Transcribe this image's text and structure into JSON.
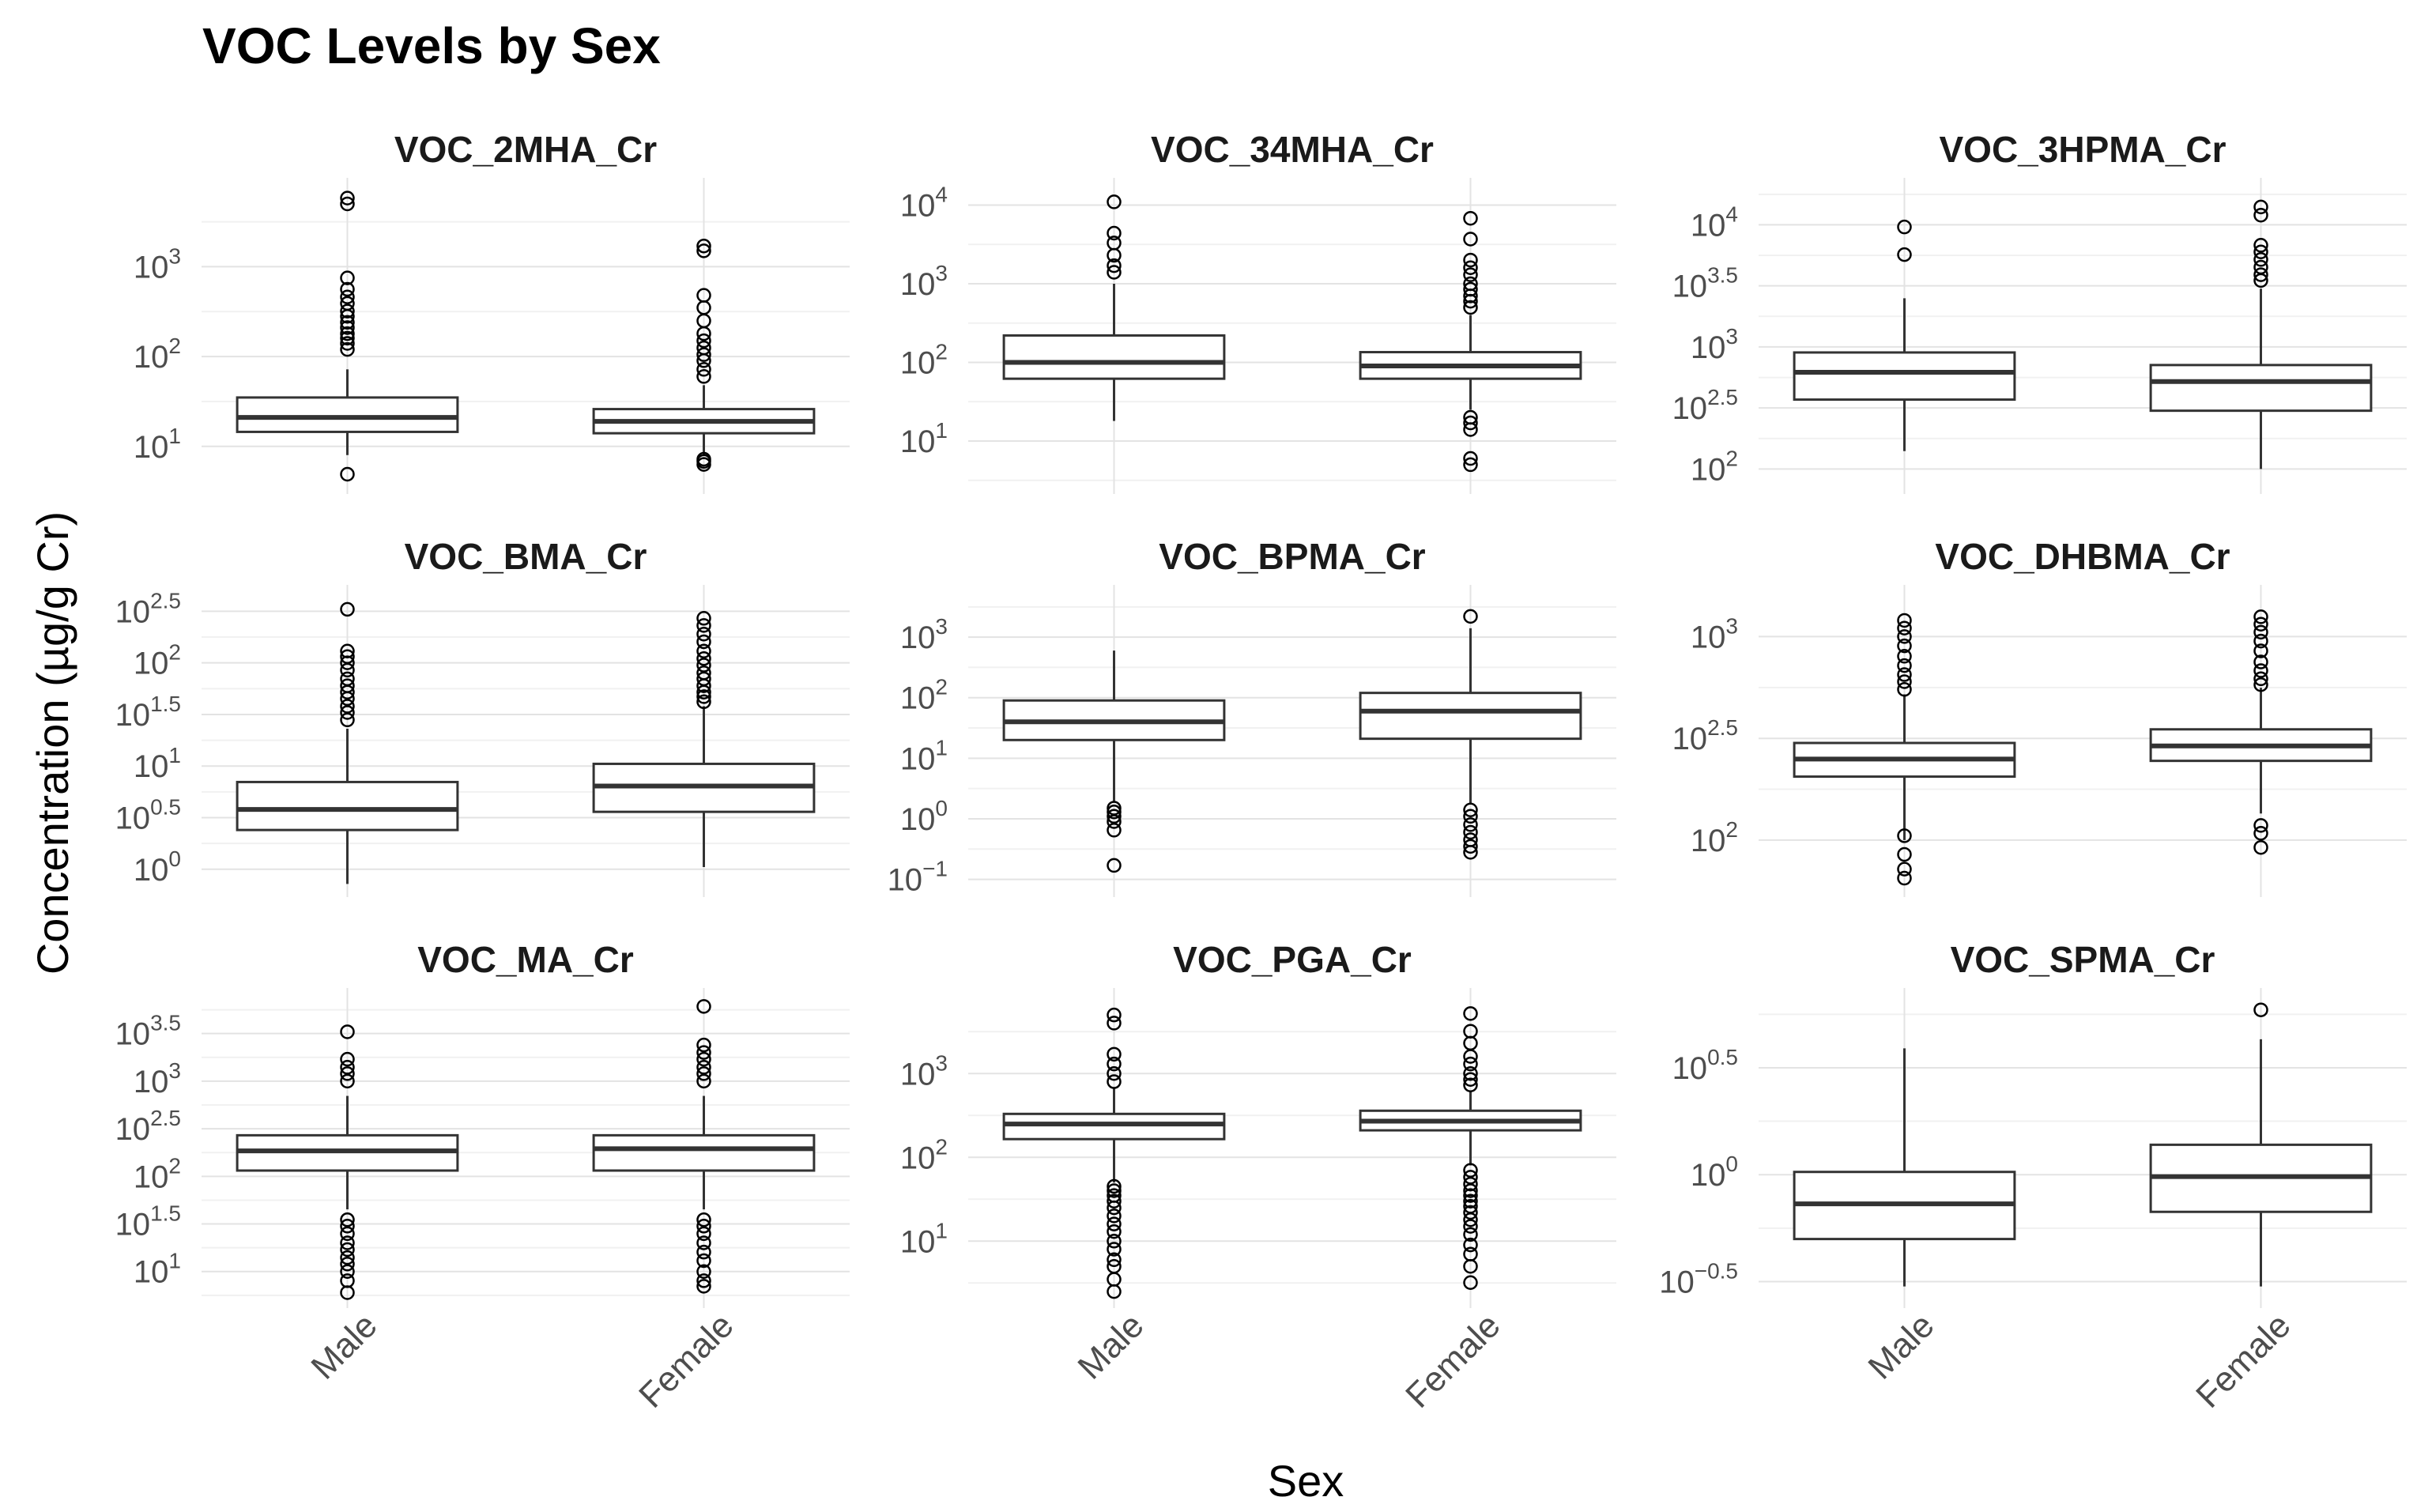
{
  "title": "VOC Levels by Sex",
  "xlabel": "Sex",
  "ylabel": "Concentration (µg/g Cr)",
  "colors": {
    "box": "#333333",
    "grid_major": "#e3e3e3",
    "grid_minor": "#f1f1f1",
    "text": "#4d4d4d"
  },
  "chart_data": [
    {
      "type": "boxplot",
      "title": "VOC_2MHA_Cr",
      "yscale": "log10",
      "ylim": [
        4,
        6500
      ],
      "yticks": [
        {
          "value": 10,
          "base": "10",
          "exp": "1"
        },
        {
          "value": 100,
          "base": "10",
          "exp": "2"
        },
        {
          "value": 1000,
          "base": "10",
          "exp": "3"
        }
      ],
      "categories": [
        "Male",
        "Female"
      ],
      "boxes": [
        {
          "name": "Male",
          "whisker_low": 8,
          "q1": 14.5,
          "median": 21,
          "q3": 35,
          "whisker_high": 72,
          "outliers": [
            4.9,
            120,
            140,
            160,
            180,
            210,
            240,
            280,
            320,
            390,
            460,
            560,
            750,
            5000,
            5800
          ]
        },
        {
          "name": "Female",
          "whisker_low": 8,
          "q1": 14,
          "median": 19,
          "q3": 26,
          "whisker_high": 48,
          "outliers": [
            6.3,
            6.8,
            7.2,
            60,
            72,
            90,
            105,
            125,
            150,
            180,
            250,
            350,
            480,
            1500,
            1700
          ]
        }
      ]
    },
    {
      "type": "boxplot",
      "title": "VOC_34MHA_Cr",
      "yscale": "log10",
      "ylim": [
        3,
        14000
      ],
      "yticks": [
        {
          "value": 10,
          "base": "10",
          "exp": "1"
        },
        {
          "value": 100,
          "base": "10",
          "exp": "2"
        },
        {
          "value": 1000,
          "base": "10",
          "exp": "3"
        },
        {
          "value": 10000,
          "base": "10",
          "exp": "4"
        }
      ],
      "categories": [
        "Male",
        "Female"
      ],
      "boxes": [
        {
          "name": "Male",
          "whisker_low": 18,
          "q1": 62,
          "median": 100,
          "q3": 220,
          "whisker_high": 1000,
          "outliers": [
            1400,
            1700,
            2300,
            3300,
            4400,
            11000
          ]
        },
        {
          "name": "Female",
          "whisker_low": 25,
          "q1": 62,
          "median": 90,
          "q3": 135,
          "whisker_high": 400,
          "outliers": [
            5,
            6,
            14,
            17,
            20,
            500,
            600,
            700,
            850,
            1000,
            1300,
            1600,
            2000,
            3700,
            6800
          ]
        }
      ]
    },
    {
      "type": "boxplot",
      "title": "VOC_3HPMA_Cr",
      "yscale": "log10",
      "ylim": [
        78,
        18000
      ],
      "yticks": [
        {
          "value": 100,
          "base": "10",
          "exp": "2"
        },
        {
          "value": 316,
          "base": "10",
          "exp": "2.5"
        },
        {
          "value": 1000,
          "base": "10",
          "exp": "3"
        },
        {
          "value": 3162,
          "base": "10",
          "exp": "3.5"
        },
        {
          "value": 10000,
          "base": "10",
          "exp": "4"
        }
      ],
      "categories": [
        "Male",
        "Female"
      ],
      "boxes": [
        {
          "name": "Male",
          "whisker_low": 140,
          "q1": 370,
          "median": 620,
          "q3": 900,
          "whisker_high": 2500,
          "outliers": [
            5700,
            9600
          ]
        },
        {
          "name": "Female",
          "whisker_low": 100,
          "q1": 300,
          "median": 520,
          "q3": 710,
          "whisker_high": 3000,
          "outliers": [
            3500,
            3900,
            4500,
            5200,
            6000,
            6800,
            12000,
            14000
          ]
        }
      ]
    },
    {
      "type": "boxplot",
      "title": "VOC_BMA_Cr",
      "yscale": "log10",
      "ylim": [
        0.7,
        400
      ],
      "yticks": [
        {
          "value": 1,
          "base": "10",
          "exp": "0"
        },
        {
          "value": 3.16,
          "base": "10",
          "exp": "0.5"
        },
        {
          "value": 10,
          "base": "10",
          "exp": "1"
        },
        {
          "value": 31.6,
          "base": "10",
          "exp": "1.5"
        },
        {
          "value": 100,
          "base": "10",
          "exp": "2"
        },
        {
          "value": 316,
          "base": "10",
          "exp": "2.5"
        }
      ],
      "categories": [
        "Male",
        "Female"
      ],
      "boxes": [
        {
          "name": "Male",
          "whisker_low": 0.72,
          "q1": 2.4,
          "median": 3.8,
          "q3": 7.0,
          "whisker_high": 23,
          "outliers": [
            28,
            33,
            38,
            45,
            52,
            60,
            70,
            85,
            100,
            115,
            130,
            330
          ]
        },
        {
          "name": "Female",
          "whisker_low": 1.05,
          "q1": 3.6,
          "median": 6.4,
          "q3": 10.5,
          "whisker_high": 38,
          "outliers": [
            42,
            47,
            52,
            60,
            70,
            80,
            95,
            110,
            130,
            160,
            190,
            230,
            270
          ]
        }
      ]
    },
    {
      "type": "boxplot",
      "title": "VOC_BPMA_Cr",
      "yscale": "log10",
      "ylim": [
        0.08,
        4000
      ],
      "yticks": [
        {
          "value": 0.1,
          "base": "10",
          "exp": "−1"
        },
        {
          "value": 1,
          "base": "10",
          "exp": "0"
        },
        {
          "value": 10,
          "base": "10",
          "exp": "1"
        },
        {
          "value": 100,
          "base": "10",
          "exp": "2"
        },
        {
          "value": 1000,
          "base": "10",
          "exp": "3"
        }
      ],
      "categories": [
        "Male",
        "Female"
      ],
      "boxes": [
        {
          "name": "Male",
          "whisker_low": 1.9,
          "q1": 20,
          "median": 40,
          "q3": 90,
          "whisker_high": 600,
          "outliers": [
            0.17,
            0.65,
            0.9,
            1.1,
            1.3,
            1.5
          ]
        },
        {
          "name": "Female",
          "whisker_low": 1.8,
          "q1": 21,
          "median": 60,
          "q3": 120,
          "whisker_high": 1400,
          "outliers": [
            0.28,
            0.35,
            0.45,
            0.6,
            0.8,
            1.1,
            1.4,
            2200
          ]
        }
      ]
    },
    {
      "type": "boxplot",
      "title": "VOC_DHBMA_Cr",
      "yscale": "log10",
      "ylim": [
        60,
        1500
      ],
      "yticks": [
        {
          "value": 100,
          "base": "10",
          "exp": "2"
        },
        {
          "value": 316,
          "base": "10",
          "exp": "2.5"
        },
        {
          "value": 1000,
          "base": "10",
          "exp": "3"
        }
      ],
      "categories": [
        "Male",
        "Female"
      ],
      "boxes": [
        {
          "name": "Male",
          "whisker_low": 100,
          "q1": 205,
          "median": 250,
          "q3": 300,
          "whisker_high": 520,
          "outliers": [
            65,
            72,
            85,
            105,
            550,
            600,
            650,
            720,
            800,
            900,
            1000,
            1100,
            1200
          ]
        },
        {
          "name": "Female",
          "whisker_low": 135,
          "q1": 245,
          "median": 290,
          "q3": 350,
          "whisker_high": 560,
          "outliers": [
            92,
            108,
            118,
            580,
            620,
            680,
            750,
            850,
            950,
            1050,
            1150,
            1250
          ]
        }
      ]
    },
    {
      "type": "boxplot",
      "title": "VOC_MA_Cr",
      "yscale": "log10",
      "ylim": [
        5.5,
        6500
      ],
      "yticks": [
        {
          "value": 10,
          "base": "10",
          "exp": "1"
        },
        {
          "value": 31.6,
          "base": "10",
          "exp": "1.5"
        },
        {
          "value": 100,
          "base": "10",
          "exp": "2"
        },
        {
          "value": 316,
          "base": "10",
          "exp": "2.5"
        },
        {
          "value": 1000,
          "base": "10",
          "exp": "3"
        },
        {
          "value": 3162,
          "base": "10",
          "exp": "3.5"
        }
      ],
      "categories": [
        "Male",
        "Female"
      ],
      "boxes": [
        {
          "name": "Male",
          "whisker_low": 45,
          "q1": 115,
          "median": 185,
          "q3": 270,
          "whisker_high": 700,
          "outliers": [
            6,
            8,
            10,
            12,
            14,
            17,
            20,
            25,
            30,
            35,
            1000,
            1200,
            1400,
            1700,
            3300
          ]
        },
        {
          "name": "Female",
          "whisker_low": 45,
          "q1": 115,
          "median": 195,
          "q3": 270,
          "whisker_high": 700,
          "outliers": [
            7,
            8,
            10,
            13,
            16,
            20,
            25,
            30,
            35,
            1000,
            1200,
            1400,
            1700,
            2000,
            2400,
            6100
          ]
        }
      ]
    },
    {
      "type": "boxplot",
      "title": "VOC_PGA_Cr",
      "yscale": "log10",
      "ylim": [
        2.2,
        6800
      ],
      "yticks": [
        {
          "value": 10,
          "base": "10",
          "exp": "1"
        },
        {
          "value": 100,
          "base": "10",
          "exp": "2"
        },
        {
          "value": 1000,
          "base": "10",
          "exp": "3"
        }
      ],
      "categories": [
        "Male",
        "Female"
      ],
      "boxes": [
        {
          "name": "Male",
          "whisker_low": 50,
          "q1": 165,
          "median": 250,
          "q3": 330,
          "whisker_high": 680,
          "outliers": [
            2.5,
            3.5,
            5,
            6,
            8,
            10,
            13,
            16,
            20,
            25,
            30,
            35,
            40,
            45,
            800,
            1000,
            1300,
            1700,
            4000,
            5000
          ]
        },
        {
          "name": "Female",
          "whisker_low": 80,
          "q1": 210,
          "median": 270,
          "q3": 360,
          "whisker_high": 630,
          "outliers": [
            3.2,
            5,
            7,
            9,
            12,
            15,
            18,
            22,
            26,
            30,
            35,
            40,
            48,
            58,
            70,
            730,
            850,
            1000,
            1300,
            1600,
            2300,
            3200,
            5200
          ]
        }
      ]
    },
    {
      "type": "boxplot",
      "title": "VOC_SPMA_Cr",
      "yscale": "log10",
      "ylim": [
        0.27,
        6.3
      ],
      "yticks": [
        {
          "value": 0.316,
          "base": "10",
          "exp": "−0.5"
        },
        {
          "value": 1,
          "base": "10",
          "exp": "0"
        },
        {
          "value": 3.16,
          "base": "10",
          "exp": "0.5"
        }
      ],
      "categories": [
        "Male",
        "Female"
      ],
      "boxes": [
        {
          "name": "Male",
          "whisker_low": 0.3,
          "q1": 0.5,
          "median": 0.73,
          "q3": 1.03,
          "whisker_high": 3.9,
          "outliers": []
        },
        {
          "name": "Female",
          "whisker_low": 0.3,
          "q1": 0.67,
          "median": 0.98,
          "q3": 1.38,
          "whisker_high": 4.3,
          "outliers": [
            5.9
          ]
        }
      ]
    }
  ]
}
